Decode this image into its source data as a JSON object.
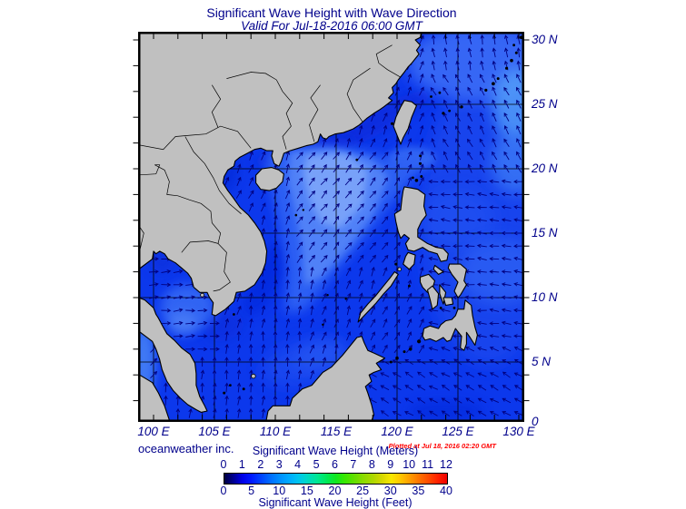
{
  "header": {
    "title": "Significant Wave Height with Wave Direction",
    "subtitle": "Valid For Jul-18-2016 06:00 GMT"
  },
  "axes": {
    "lon_values": [
      100,
      105,
      110,
      115,
      120,
      125,
      130
    ],
    "lon_labels": [
      "100 E",
      "105 E",
      "110 E",
      "115 E",
      "120 E",
      "125 E",
      "130 E"
    ],
    "lat_values": [
      30,
      25,
      20,
      15,
      10,
      5,
      0.35
    ],
    "lat_labels": [
      "30 N",
      "25 N",
      "20 N",
      "15 N",
      "10 N",
      "5 N",
      "0"
    ]
  },
  "credits": {
    "left": "oceanweather inc.",
    "right": "Plotted at Jul 18, 2016 02:20 GMT"
  },
  "colorbar": {
    "title_meters": "Significant Wave Height (Meters)",
    "title_feet": "Significant Wave Height (Feet)",
    "meters_ticks": [
      "0",
      "1",
      "2",
      "3",
      "4",
      "5",
      "6",
      "7",
      "8",
      "9",
      "10",
      "11",
      "12"
    ],
    "feet_ticks": [
      "0",
      "5",
      "10",
      "15",
      "20",
      "25",
      "30",
      "35",
      "40"
    ],
    "gradient": [
      [
        0,
        "#000040"
      ],
      [
        4,
        "#000090"
      ],
      [
        8,
        "#0000E8"
      ],
      [
        12,
        "#0018FF"
      ],
      [
        17,
        "#0048FF"
      ],
      [
        21,
        "#0070FF"
      ],
      [
        25,
        "#0090FF"
      ],
      [
        29,
        "#00AAFF"
      ],
      [
        33,
        "#00C4F0"
      ],
      [
        37,
        "#00D8C8"
      ],
      [
        42,
        "#00E890"
      ],
      [
        46,
        "#00E958"
      ],
      [
        50,
        "#10E820"
      ],
      [
        54,
        "#38E800"
      ],
      [
        58,
        "#60E000"
      ],
      [
        62,
        "#88DC00"
      ],
      [
        67,
        "#B0D800"
      ],
      [
        71,
        "#D8D800"
      ],
      [
        75,
        "#F8E800"
      ],
      [
        79,
        "#FFC800"
      ],
      [
        83,
        "#FFA000"
      ],
      [
        87,
        "#FF7800"
      ],
      [
        92,
        "#FF4800"
      ],
      [
        96,
        "#FF2000"
      ],
      [
        100,
        "#F00000"
      ]
    ]
  },
  "map": {
    "land_color": "#C0C0C0",
    "coast_color": "#000000",
    "ocean_base": "#0C38EC",
    "arrow_color": "#000080",
    "frame_color": "#000000",
    "text_color": "#00008B",
    "plotted_color": "#FF0000"
  }
}
